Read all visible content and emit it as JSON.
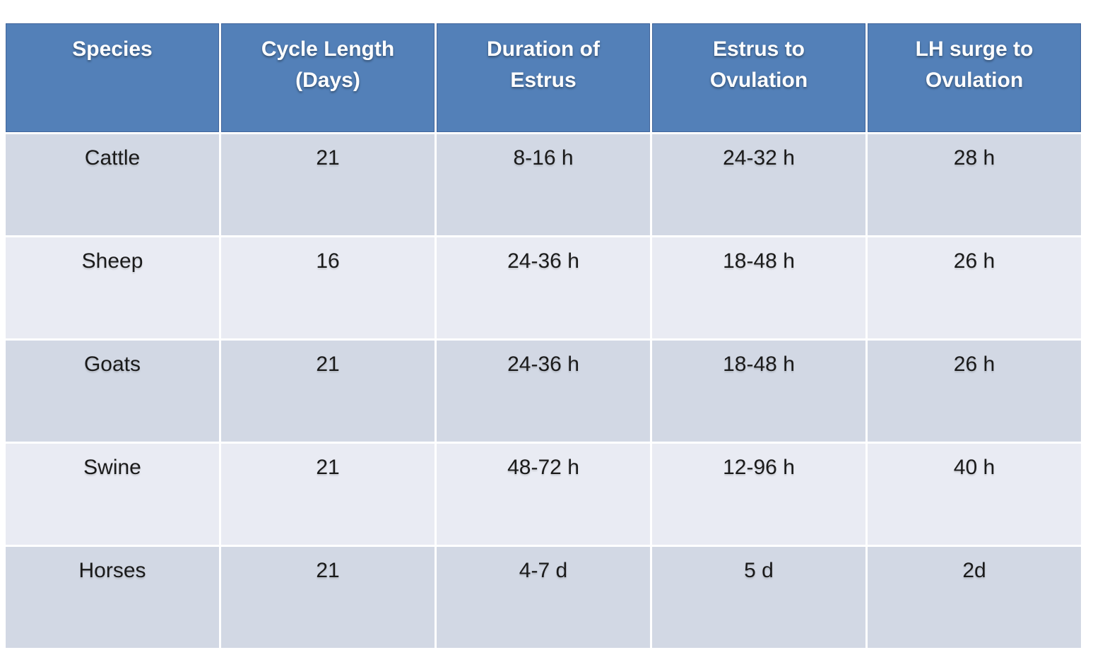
{
  "colors": {
    "header_bg": "#5380b8",
    "header_border": "#41659b",
    "row_dark": "#d2d8e4",
    "row_light": "#e9ebf3",
    "header_text": "#ffffff",
    "body_text": "#1a1a1a",
    "background": "#ffffff"
  },
  "chart_data": {
    "type": "table",
    "title": "",
    "columns": [
      "Species",
      "Cycle Length (Days)",
      "Duration of Estrus",
      "Estrus to Ovulation",
      "LH surge to Ovulation"
    ],
    "rows": [
      [
        "Cattle",
        "21",
        "8-16 h",
        "24-32 h",
        "28 h"
      ],
      [
        "Sheep",
        "16",
        "24-36 h",
        "18-48 h",
        "26 h"
      ],
      [
        "Goats",
        "21",
        "24-36 h",
        "18-48 h",
        "26 h"
      ],
      [
        "Swine",
        "21",
        "48-72 h",
        "12-96 h",
        "40 h"
      ],
      [
        "Horses",
        "21",
        "4-7 d",
        "5 d",
        "2d"
      ]
    ],
    "layout_hints": {
      "header_fill": "#5380b8",
      "banding": [
        "#d2d8e4",
        "#e9ebf3"
      ],
      "columns_equal_width": true,
      "text_align": "center",
      "vertical_align": "top"
    }
  }
}
